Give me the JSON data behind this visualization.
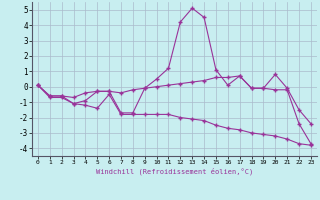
{
  "xlabel": "Windchill (Refroidissement éolien,°C)",
  "x": [
    0,
    1,
    2,
    3,
    4,
    5,
    6,
    7,
    8,
    9,
    10,
    11,
    12,
    13,
    14,
    15,
    16,
    17,
    18,
    19,
    20,
    21,
    22,
    23
  ],
  "line1": [
    0.1,
    -0.6,
    -0.6,
    -1.1,
    -0.9,
    -0.3,
    -0.3,
    -1.7,
    -1.7,
    -0.1,
    0.5,
    1.2,
    4.2,
    5.1,
    4.5,
    1.1,
    0.1,
    0.7,
    -0.1,
    -0.1,
    0.8,
    -0.1,
    -1.5,
    -2.4
  ],
  "line2": [
    0.1,
    -0.7,
    -0.7,
    -1.1,
    -1.2,
    -1.4,
    -0.5,
    -1.8,
    -1.8,
    -1.8,
    -1.8,
    -1.8,
    -2.0,
    -2.1,
    -2.2,
    -2.5,
    -2.7,
    -2.8,
    -3.0,
    -3.1,
    -3.2,
    -3.4,
    -3.7,
    -3.8
  ],
  "line3": [
    0.1,
    -0.6,
    -0.6,
    -0.7,
    -0.4,
    -0.3,
    -0.3,
    -0.4,
    -0.2,
    -0.1,
    0.0,
    0.1,
    0.2,
    0.3,
    0.4,
    0.6,
    0.6,
    0.7,
    -0.1,
    -0.1,
    -0.2,
    -0.2,
    -2.4,
    -3.7
  ],
  "line_color": "#993399",
  "bg_color": "#c8eef0",
  "ylim": [
    -4.5,
    5.5
  ],
  "yticks": [
    -4,
    -3,
    -2,
    -1,
    0,
    1,
    2,
    3,
    4,
    5
  ],
  "grid_color": "#aabbcc",
  "marker": "+"
}
